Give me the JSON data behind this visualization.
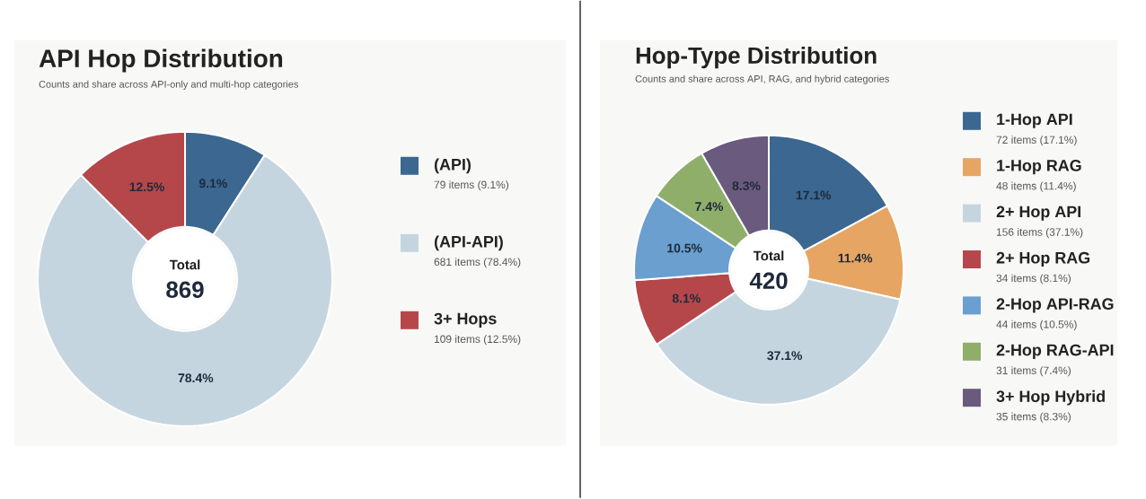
{
  "chart_data": [
    {
      "type": "donut",
      "title": "API Hop Distribution",
      "subtitle": "Counts and share across API-only and multi-hop categories",
      "categories": [
        "(API)",
        "(API-API)",
        "3+ Hops"
      ],
      "values": [
        9.1,
        78.4,
        12.5
      ],
      "value_labels": [
        "9.1%",
        "78.4%",
        "12.5%"
      ],
      "colors": [
        "#3b6790",
        "#c5d5df",
        "#b5474b"
      ],
      "annotations": [
        "Total",
        "869",
        "79 items (9.1%)",
        "681 items (78.4%)",
        "109 items (12.5%)"
      ],
      "legend": "right"
    },
    {
      "type": "donut",
      "title": "Hop-Type Distribution",
      "subtitle": "Counts and share across API, RAG, and hybrid categories",
      "categories": [
        "1-Hop API",
        "1-Hop RAG",
        "2+ Hop API",
        "2+ Hop RAG",
        "2-Hop API-RAG",
        "2-Hop RAG-API",
        "3+ Hop Hybrid"
      ],
      "values": [
        17.1,
        11.4,
        37.1,
        8.1,
        10.5,
        7.4,
        8.3
      ],
      "value_labels": [
        "17.1%",
        "11.4%",
        "37.1%",
        "8.1%",
        "10.5%",
        "7.4%",
        "8.3%"
      ],
      "colors": [
        "#3b6790",
        "#e7a563",
        "#c5d5df",
        "#b5474b",
        "#6a9fcf",
        "#8fae6a",
        "#6a5a7e"
      ],
      "annotations": [
        "Total",
        "420",
        "72 items (17.1%)",
        "48 items (11.4%)",
        "156 items (37.1%)",
        "34 items (8.1%)",
        "44 items (10.5%)",
        "31 items (7.4%)",
        "35 items (8.3%)"
      ],
      "legend": "right"
    }
  ]
}
